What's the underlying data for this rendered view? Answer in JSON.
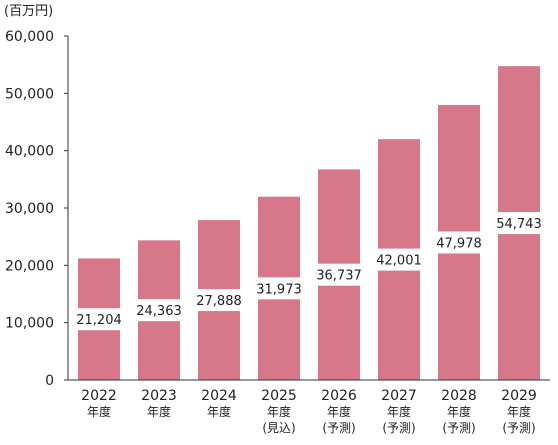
{
  "chart_data": {
    "type": "bar",
    "unit_label": "(百万円)",
    "categories": [
      "2022\n年度",
      "2023\n年度",
      "2024\n年度",
      "2025\n年度\n(見込)",
      "2026\n年度\n(予測)",
      "2027\n年度\n(予測)",
      "2028\n年度\n(予測)",
      "2029\n年度\n(予測)"
    ],
    "values": [
      21204,
      24363,
      27888,
      31973,
      36737,
      42001,
      47978,
      54743
    ],
    "value_labels": [
      "21,204",
      "24,363",
      "27,888",
      "31,973",
      "36,737",
      "42,001",
      "47,978",
      "54,743"
    ],
    "y_ticks": [
      {
        "value": 0,
        "label": "0"
      },
      {
        "value": 10000,
        "label": "10,000"
      },
      {
        "value": 20000,
        "label": "20,000"
      },
      {
        "value": 30000,
        "label": "30,000"
      },
      {
        "value": 40000,
        "label": "40,000"
      },
      {
        "value": 50000,
        "label": "50,000"
      },
      {
        "value": 60000,
        "label": "60,000"
      }
    ],
    "ylim": [
      0,
      60000
    ],
    "grid": false,
    "colors": {
      "bar": "#d6788a",
      "axis": "#333333",
      "text": "#222222",
      "label_bg": "#ffffff"
    }
  }
}
